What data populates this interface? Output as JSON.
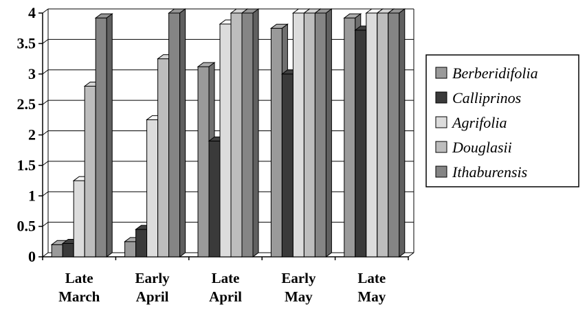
{
  "chart_data": {
    "type": "bar",
    "categories": [
      [
        "Late",
        "March"
      ],
      [
        "Early",
        "April"
      ],
      [
        "Late",
        "April"
      ],
      [
        "Early",
        "May"
      ],
      [
        "Late",
        "May"
      ]
    ],
    "series": [
      {
        "name": "Berberidifolia",
        "values": [
          0.2,
          0.25,
          3.12,
          3.75,
          3.92
        ],
        "color": "#9a9a9a"
      },
      {
        "name": "Calliprinos",
        "values": [
          0.22,
          0.45,
          1.9,
          3.0,
          3.72
        ],
        "color": "#3a3a3a"
      },
      {
        "name": "Agrifolia",
        "values": [
          1.25,
          2.25,
          3.82,
          4.0,
          4.0
        ],
        "color": "#dcdcdc"
      },
      {
        "name": "Douglasii",
        "values": [
          2.8,
          3.25,
          4.0,
          4.0,
          4.0
        ],
        "color": "#bdbdbd"
      },
      {
        "name": "Ithaburensis",
        "values": [
          3.92,
          4.0,
          4.0,
          4.0,
          4.0
        ],
        "color": "#858585"
      }
    ],
    "yticks": [
      "0",
      "0.5",
      "1",
      "1.5",
      "2",
      "2.5",
      "3",
      "3.5",
      "4"
    ],
    "ylim": [
      0,
      4
    ],
    "grid": true,
    "legend_position": "right",
    "title": "",
    "xlabel": "",
    "ylabel": ""
  }
}
